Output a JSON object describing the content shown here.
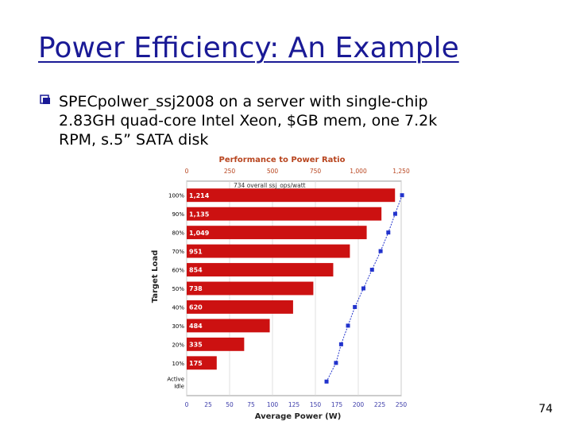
{
  "slide": {
    "title": "Power Efficiency: An Example",
    "bullet_lines": [
      "SPECpolwer_ssj2008 on a server with single-chip",
      "2.83GH quad-core Intel Xeon, $GB mem, one 7.2k",
      "RPM, s.5” SATA disk"
    ],
    "page_number": "74"
  },
  "colors": {
    "title": "#1a1a96",
    "bar": "#cc1111",
    "line": "#2233cc",
    "chart_title": "#b8451f"
  },
  "chart_data": {
    "type": "bar",
    "orientation": "horizontal",
    "title": "Performance to Power Ratio",
    "annotation": "734 overall ssj_ops/watt",
    "ylabel": "Target Load",
    "xlabel": "Average Power (W)",
    "categories": [
      "100%",
      "90%",
      "80%",
      "70%",
      "60%",
      "50%",
      "40%",
      "30%",
      "20%",
      "10%",
      "Active Idle"
    ],
    "top_axis": {
      "label": "",
      "range": [
        0,
        1250
      ],
      "ticks": [
        "0",
        "250",
        "500",
        "750",
        "1,000",
        "1,250"
      ]
    },
    "bottom_axis": {
      "range": [
        0,
        250
      ],
      "ticks": [
        "0",
        "25",
        "50",
        "75",
        "100",
        "125",
        "150",
        "175",
        "200",
        "225",
        "250"
      ]
    },
    "series": [
      {
        "name": "",
        "kind": "bar",
        "axis": "top",
        "values": [
          1214,
          1135,
          1049,
          951,
          854,
          738,
          620,
          484,
          335,
          175,
          null
        ],
        "labels": [
          "1,214",
          "1,135",
          "1,049",
          "951",
          "854",
          "738",
          "620",
          "484",
          "335",
          "175",
          ""
        ]
      },
      {
        "name": "",
        "kind": "line",
        "axis": "bottom",
        "values": [
          251,
          243,
          235,
          226,
          216,
          206,
          196,
          188,
          180,
          174,
          163
        ]
      }
    ],
    "grid": true,
    "legend": "none"
  }
}
